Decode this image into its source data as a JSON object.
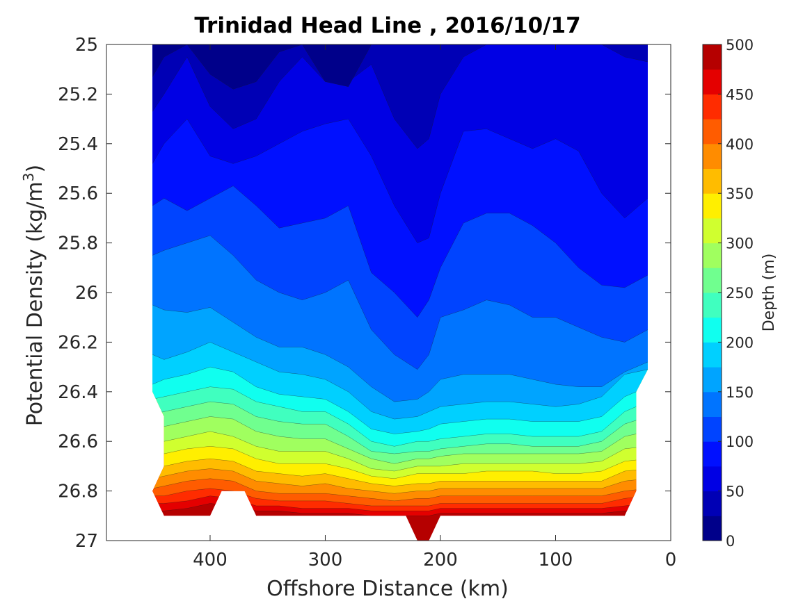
{
  "chart_data": {
    "type": "heatmap",
    "subtype": "filled-contour",
    "title": "Trinidad Head Line , 2016/10/17",
    "xlabel": "Offshore Distance (km)",
    "ylabel_main": "Potential Density (kg/m",
    "ylabel_sup": "3",
    "ylabel_close": ")",
    "xlim": [
      490,
      0
    ],
    "x_reversed": true,
    "ylim": [
      25,
      27
    ],
    "y_reversed": true,
    "xticks": [
      400,
      300,
      200,
      100,
      0
    ],
    "xtick_labels": [
      "400",
      "300",
      "200",
      "100",
      "0"
    ],
    "yticks": [
      25,
      25.2,
      25.4,
      25.6,
      25.8,
      26,
      26.2,
      26.4,
      26.6,
      26.8,
      27
    ],
    "ytick_labels": [
      "25",
      "25.2",
      "25.4",
      "25.6",
      "25.8",
      "26",
      "26.2",
      "26.4",
      "26.6",
      "26.8",
      "27"
    ],
    "colorbar": {
      "label": "Depth (m)",
      "range": [
        0,
        500
      ],
      "ticks": [
        0,
        50,
        100,
        150,
        200,
        250,
        300,
        350,
        400,
        450,
        500
      ],
      "tick_labels": [
        "0",
        "50",
        "100",
        "150",
        "200",
        "250",
        "300",
        "350",
        "400",
        "450",
        "500"
      ],
      "level_step": 25,
      "colormap": "jet",
      "level_colors": [
        "#00008a",
        "#0000b5",
        "#0000e4",
        "#0010ff",
        "#0044ff",
        "#0074ff",
        "#00a4ff",
        "#00d0ff",
        "#10ffef",
        "#40ffbf",
        "#70ff8f",
        "#a0ff5f",
        "#d0ff2f",
        "#ffef00",
        "#ffbc00",
        "#ff8c00",
        "#ff5c00",
        "#ff2c00",
        "#e40000",
        "#b50000"
      ]
    },
    "isopycnal_x": [
      450,
      440,
      420,
      400,
      380,
      360,
      340,
      320,
      300,
      280,
      260,
      240,
      220,
      210,
      200,
      180,
      160,
      140,
      120,
      100,
      80,
      60,
      40,
      20
    ],
    "depth_contours": [
      {
        "depth": 25,
        "sigma": [
          25.13,
          25.05,
          25.0,
          25.12,
          25.18,
          25.15,
          25.03,
          25.0,
          25.15,
          25.17,
          25.0,
          25.0,
          25.0,
          25.0,
          25.0,
          25.0,
          25.0,
          25.0,
          25.0,
          25.0,
          25.0,
          25.0,
          25.0,
          25.0
        ]
      },
      {
        "depth": 50,
        "sigma": [
          25.27,
          25.2,
          25.05,
          25.25,
          25.34,
          25.3,
          25.15,
          25.05,
          25.15,
          25.15,
          25.08,
          25.3,
          25.42,
          25.38,
          25.2,
          25.05,
          25.0,
          25.0,
          25.0,
          25.0,
          25.0,
          25.0,
          25.05,
          25.07
        ]
      },
      {
        "depth": 75,
        "sigma": [
          25.48,
          25.4,
          25.3,
          25.45,
          25.48,
          25.45,
          25.4,
          25.35,
          25.32,
          25.3,
          25.45,
          25.65,
          25.8,
          25.78,
          25.6,
          25.35,
          25.34,
          25.38,
          25.42,
          25.38,
          25.43,
          25.6,
          25.7,
          25.62
        ]
      },
      {
        "depth": 100,
        "sigma": [
          25.65,
          25.62,
          25.67,
          25.62,
          25.57,
          25.65,
          25.74,
          25.72,
          25.7,
          25.65,
          25.92,
          26.0,
          26.1,
          26.03,
          25.9,
          25.72,
          25.68,
          25.68,
          25.73,
          25.8,
          25.9,
          25.97,
          25.98,
          25.93
        ]
      },
      {
        "depth": 125,
        "sigma": [
          25.85,
          25.83,
          25.8,
          25.77,
          25.85,
          25.95,
          26.0,
          26.03,
          26.0,
          25.95,
          26.15,
          26.25,
          26.31,
          26.25,
          26.1,
          26.07,
          26.03,
          26.05,
          26.1,
          26.1,
          26.14,
          26.18,
          26.2,
          26.15
        ]
      },
      {
        "depth": 150,
        "sigma": [
          26.05,
          26.07,
          26.08,
          26.06,
          26.12,
          26.18,
          26.22,
          26.22,
          26.25,
          26.3,
          26.38,
          26.44,
          26.43,
          26.4,
          26.35,
          26.33,
          26.33,
          26.33,
          26.35,
          26.37,
          26.38,
          26.38,
          26.32,
          26.28
        ]
      },
      {
        "depth": 175,
        "sigma": [
          26.25,
          26.27,
          26.24,
          26.2,
          26.24,
          26.28,
          26.32,
          26.33,
          26.35,
          26.4,
          26.48,
          26.51,
          26.5,
          26.48,
          26.46,
          26.45,
          26.44,
          26.44,
          26.45,
          26.46,
          26.45,
          26.42,
          26.33,
          26.31
        ]
      },
      {
        "depth": 200,
        "sigma": [
          26.37,
          26.35,
          26.33,
          26.3,
          26.32,
          26.38,
          26.41,
          26.42,
          26.43,
          26.48,
          26.55,
          26.57,
          26.56,
          26.55,
          26.53,
          26.52,
          26.51,
          26.51,
          26.52,
          26.52,
          26.52,
          26.5,
          26.42,
          26.38
        ]
      },
      {
        "depth": 225,
        "sigma": [
          26.43,
          26.42,
          26.4,
          26.38,
          26.39,
          26.44,
          26.46,
          26.48,
          26.48,
          26.53,
          26.6,
          26.62,
          26.6,
          26.6,
          26.59,
          26.58,
          26.57,
          26.57,
          26.58,
          26.58,
          26.58,
          26.56,
          26.48,
          26.44
        ]
      },
      {
        "depth": 250,
        "sigma": [
          26.49,
          26.48,
          26.46,
          26.44,
          26.45,
          26.5,
          26.52,
          26.53,
          26.53,
          26.58,
          26.64,
          26.65,
          26.64,
          26.64,
          26.63,
          26.62,
          26.61,
          26.61,
          26.62,
          26.62,
          26.62,
          26.6,
          26.53,
          26.5
        ]
      },
      {
        "depth": 275,
        "sigma": [
          26.55,
          26.54,
          26.52,
          26.5,
          26.51,
          26.56,
          26.58,
          26.59,
          26.59,
          26.63,
          26.67,
          26.69,
          26.67,
          26.67,
          26.66,
          26.65,
          26.65,
          26.65,
          26.65,
          26.65,
          26.65,
          26.64,
          26.58,
          26.56
        ]
      },
      {
        "depth": 300,
        "sigma": [
          26.61,
          26.6,
          26.58,
          26.56,
          26.58,
          26.62,
          26.64,
          26.64,
          26.64,
          26.67,
          26.71,
          26.72,
          26.7,
          26.7,
          26.7,
          26.69,
          26.69,
          26.69,
          26.69,
          26.69,
          26.69,
          26.68,
          26.63,
          26.62
        ]
      },
      {
        "depth": 325,
        "sigma": [
          26.66,
          26.65,
          26.63,
          26.62,
          26.63,
          26.67,
          26.69,
          26.69,
          26.69,
          26.71,
          26.74,
          26.75,
          26.73,
          26.73,
          26.73,
          26.73,
          26.72,
          26.72,
          26.72,
          26.73,
          26.73,
          26.72,
          26.68,
          26.67
        ]
      },
      {
        "depth": 350,
        "sigma": [
          26.71,
          26.7,
          26.68,
          26.67,
          26.68,
          26.72,
          26.73,
          26.74,
          26.73,
          26.75,
          26.77,
          26.78,
          26.77,
          26.77,
          26.76,
          26.76,
          26.76,
          26.76,
          26.76,
          26.76,
          26.76,
          26.76,
          26.72,
          26.71
        ]
      },
      {
        "depth": 375,
        "sigma": [
          26.75,
          26.74,
          26.72,
          26.71,
          26.72,
          26.76,
          26.77,
          26.78,
          26.77,
          26.79,
          26.8,
          26.81,
          26.8,
          26.8,
          26.79,
          26.79,
          26.79,
          26.79,
          26.79,
          26.79,
          26.79,
          26.79,
          26.76,
          26.75
        ]
      },
      {
        "depth": 400,
        "sigma": [
          26.79,
          26.78,
          26.76,
          26.75,
          26.76,
          26.8,
          26.81,
          26.81,
          26.81,
          26.82,
          26.83,
          26.84,
          26.83,
          26.83,
          26.82,
          26.82,
          26.82,
          26.82,
          26.82,
          26.82,
          26.82,
          26.82,
          26.8,
          26.79
        ]
      },
      {
        "depth": 425,
        "sigma": [
          26.82,
          26.82,
          26.8,
          26.79,
          26.8,
          26.83,
          26.84,
          26.84,
          26.84,
          26.85,
          26.86,
          26.86,
          26.86,
          26.86,
          26.85,
          26.85,
          26.85,
          26.85,
          26.85,
          26.85,
          26.85,
          26.85,
          26.83,
          26.82
        ]
      },
      {
        "depth": 450,
        "sigma": [
          26.85,
          26.85,
          26.84,
          26.82,
          26.83,
          26.86,
          26.86,
          26.87,
          26.87,
          26.87,
          26.88,
          26.88,
          26.88,
          26.88,
          26.87,
          26.87,
          26.87,
          26.87,
          26.87,
          26.87,
          26.87,
          26.87,
          26.86,
          26.85
        ]
      },
      {
        "depth": 475,
        "sigma": [
          26.88,
          26.88,
          26.87,
          26.85,
          26.86,
          26.88,
          26.88,
          26.89,
          26.89,
          26.89,
          26.9,
          26.9,
          26.9,
          26.9,
          26.89,
          26.89,
          26.89,
          26.89,
          26.89,
          26.89,
          26.89,
          26.89,
          26.88,
          26.88
        ]
      }
    ],
    "data_boundary": [
      [
        450,
        25.0
      ],
      [
        20,
        25.0
      ],
      [
        20,
        26.31
      ],
      [
        30,
        26.4
      ],
      [
        30,
        26.8
      ],
      [
        40,
        26.9
      ],
      [
        200,
        26.9
      ],
      [
        210,
        27.0
      ],
      [
        220,
        27.0
      ],
      [
        230,
        26.9
      ],
      [
        360,
        26.9
      ],
      [
        370,
        26.8
      ],
      [
        390,
        26.8
      ],
      [
        400,
        26.9
      ],
      [
        440,
        26.9
      ],
      [
        450,
        26.8
      ],
      [
        440,
        26.7
      ],
      [
        440,
        26.5
      ],
      [
        450,
        26.4
      ]
    ]
  }
}
